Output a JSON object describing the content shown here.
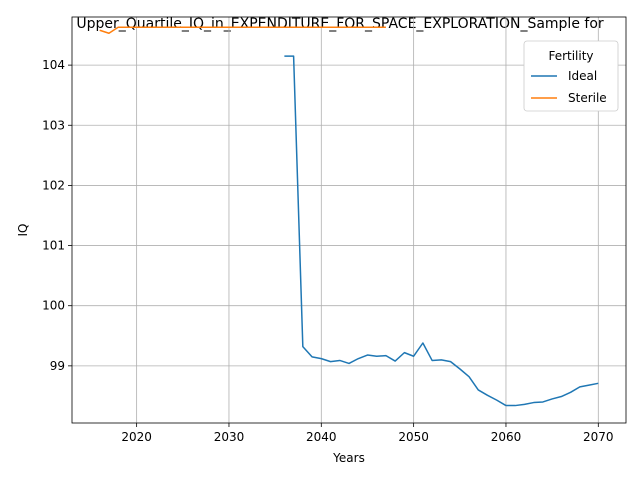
{
  "chart_data": {
    "type": "line",
    "title": "Upper_Quartile_IQ_in_EXPENDITURE_FOR_SPACE_EXPLORATION_Sample for",
    "xlabel": "Years",
    "ylabel": "IQ",
    "xlim": [
      2013,
      2073
    ],
    "ylim": [
      98.05,
      104.8
    ],
    "xticks": [
      2020,
      2030,
      2040,
      2050,
      2060,
      2070
    ],
    "yticks": [
      99,
      100,
      101,
      102,
      103,
      104
    ],
    "grid": true,
    "legend": {
      "title": "Fertility",
      "position": "top-right"
    },
    "series": [
      {
        "name": "Ideal",
        "color": "#1f77b4",
        "points": [
          [
            2036,
            104.15
          ],
          [
            2037,
            104.15
          ],
          [
            2038,
            99.32
          ],
          [
            2039,
            99.15
          ],
          [
            2040,
            99.12
          ],
          [
            2041,
            99.07
          ],
          [
            2042,
            99.09
          ],
          [
            2043,
            99.04
          ],
          [
            2044,
            99.12
          ],
          [
            2045,
            99.18
          ],
          [
            2046,
            99.16
          ],
          [
            2047,
            99.17
          ],
          [
            2048,
            99.08
          ],
          [
            2049,
            99.22
          ],
          [
            2050,
            99.16
          ],
          [
            2051,
            99.38
          ],
          [
            2052,
            99.09
          ],
          [
            2053,
            99.1
          ],
          [
            2054,
            99.07
          ],
          [
            2055,
            98.95
          ],
          [
            2056,
            98.82
          ],
          [
            2057,
            98.6
          ],
          [
            2058,
            98.51
          ],
          [
            2059,
            98.43
          ],
          [
            2060,
            98.34
          ],
          [
            2061,
            98.34
          ],
          [
            2062,
            98.36
          ],
          [
            2063,
            98.39
          ],
          [
            2064,
            98.4
          ],
          [
            2065,
            98.45
          ],
          [
            2066,
            98.49
          ],
          [
            2067,
            98.56
          ],
          [
            2068,
            98.65
          ],
          [
            2069,
            98.68
          ],
          [
            2070,
            98.71
          ]
        ]
      },
      {
        "name": "Sterile",
        "color": "#ff7f0e",
        "points": [
          [
            2016,
            104.58
          ],
          [
            2017,
            104.53
          ],
          [
            2018,
            104.63
          ],
          [
            2019,
            104.63
          ],
          [
            2020,
            104.63
          ],
          [
            2025,
            104.63
          ],
          [
            2030,
            104.63
          ],
          [
            2035,
            104.63
          ],
          [
            2040,
            104.63
          ],
          [
            2045,
            104.63
          ],
          [
            2047,
            104.63
          ]
        ]
      }
    ]
  }
}
